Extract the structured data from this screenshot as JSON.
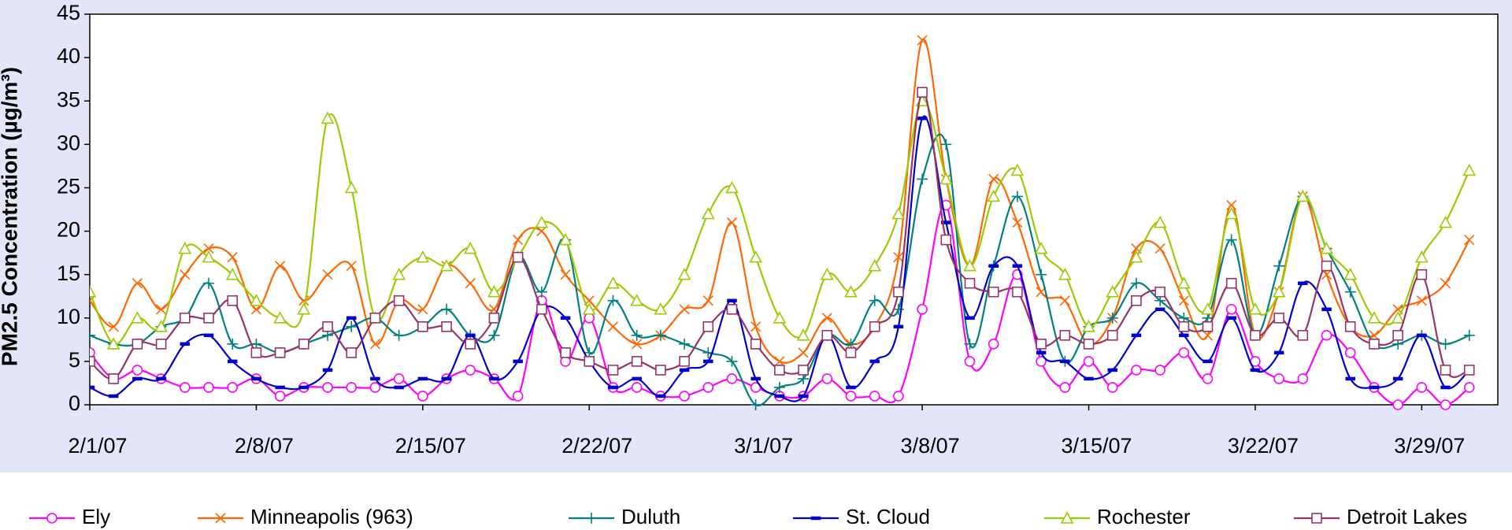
{
  "chart_data": {
    "type": "line",
    "smooth": true,
    "y_label": "PM2.5 Concentration (µg/m³)",
    "categories": [
      "2/1/07",
      null,
      null,
      null,
      null,
      null,
      null,
      "2/8/07",
      null,
      null,
      null,
      null,
      null,
      null,
      "2/15/07",
      null,
      null,
      null,
      null,
      null,
      null,
      "2/22/07",
      null,
      null,
      null,
      null,
      null,
      null,
      "3/1/07",
      null,
      null,
      null,
      null,
      null,
      null,
      "3/8/07",
      null,
      null,
      null,
      null,
      null,
      null,
      "3/15/07",
      null,
      null,
      null,
      null,
      null,
      null,
      "3/22/07",
      null,
      null,
      null,
      null,
      null,
      null,
      "3/29/07",
      null,
      null
    ],
    "ylim": [
      0,
      45
    ],
    "yticks": [
      0,
      5,
      10,
      15,
      20,
      25,
      30,
      35,
      40,
      45
    ],
    "series": [
      {
        "name": "Ely",
        "color": "#ff00ff",
        "marker": "circle",
        "values": [
          6,
          3,
          4,
          3,
          2,
          2,
          2,
          3,
          1,
          2,
          2,
          2,
          2,
          3,
          1,
          3,
          4,
          3,
          1,
          12,
          5,
          10,
          2,
          2,
          1,
          1,
          2,
          3,
          2,
          1,
          1,
          3,
          1,
          1,
          1,
          11,
          23,
          5,
          7,
          15,
          5,
          2,
          5,
          2,
          4,
          4,
          6,
          3,
          11,
          5,
          3,
          3,
          8,
          6,
          2,
          0,
          2,
          0,
          2
        ]
      },
      {
        "name": "Minneapolis (963)",
        "color": "#ff6600",
        "marker": "x",
        "values": [
          12,
          9,
          14,
          11,
          15,
          18,
          17,
          11,
          16,
          12,
          15,
          16,
          7,
          12,
          11,
          16,
          14,
          11,
          19,
          20,
          15,
          12,
          9,
          7,
          8,
          11,
          12,
          21,
          9,
          5,
          6,
          10,
          7,
          9,
          17,
          42,
          26,
          16,
          26,
          21,
          13,
          12,
          7,
          10,
          18,
          18,
          12,
          8,
          23,
          8,
          13,
          24,
          15,
          9,
          8,
          11,
          12,
          14,
          19
        ]
      },
      {
        "name": "Duluth",
        "color": "#008080",
        "marker": "plus",
        "values": [
          8,
          7,
          7,
          9,
          10,
          14,
          7,
          7,
          6,
          7,
          8,
          9,
          10,
          8,
          9,
          11,
          8,
          8,
          17,
          13,
          19,
          6,
          12,
          8,
          8,
          7,
          6,
          5,
          0,
          2,
          3,
          8,
          7,
          12,
          11,
          26,
          30,
          7,
          16,
          24,
          15,
          5,
          9,
          10,
          14,
          12,
          10,
          10,
          19,
          8,
          16,
          24,
          18,
          13,
          7,
          7,
          8,
          7,
          8
        ]
      },
      {
        "name": "St. Cloud",
        "color": "#0000cc",
        "marker": "dash",
        "values": [
          2,
          1,
          3,
          3,
          7,
          8,
          5,
          3,
          2,
          2,
          4,
          10,
          3,
          2,
          3,
          3,
          8,
          3,
          5,
          11,
          10,
          5,
          2,
          3,
          1,
          4,
          5,
          12,
          3,
          1,
          1,
          8,
          2,
          5,
          9,
          33,
          21,
          10,
          16,
          16,
          6,
          5,
          3,
          4,
          8,
          11,
          8,
          5,
          10,
          4,
          6,
          14,
          11,
          3,
          2,
          3,
          8,
          2,
          4
        ]
      },
      {
        "name": "Rochester",
        "color": "#99cc00",
        "marker": "triangle",
        "values": [
          13,
          7,
          10,
          9,
          18,
          17,
          15,
          12,
          10,
          11,
          33,
          25,
          10,
          15,
          17,
          16,
          18,
          13,
          17,
          21,
          19,
          11,
          14,
          12,
          11,
          15,
          22,
          25,
          17,
          10,
          8,
          15,
          13,
          16,
          22,
          35,
          26,
          16,
          24,
          27,
          18,
          15,
          9,
          13,
          17,
          21,
          14,
          11,
          22,
          11,
          13,
          24,
          18,
          15,
          10,
          10,
          17,
          21,
          27
        ]
      },
      {
        "name": "Detroit Lakes",
        "color": "#993366",
        "marker": "square",
        "values": [
          5,
          3,
          7,
          7,
          10,
          10,
          12,
          6,
          6,
          7,
          9,
          6,
          10,
          12,
          9,
          9,
          7,
          10,
          17,
          11,
          6,
          5,
          4,
          5,
          4,
          5,
          9,
          11,
          7,
          4,
          4,
          8,
          6,
          9,
          13,
          36,
          19,
          14,
          13,
          13,
          7,
          8,
          7,
          8,
          12,
          13,
          9,
          9,
          14,
          8,
          10,
          8,
          16,
          9,
          7,
          8,
          15,
          4,
          4
        ]
      }
    ]
  }
}
